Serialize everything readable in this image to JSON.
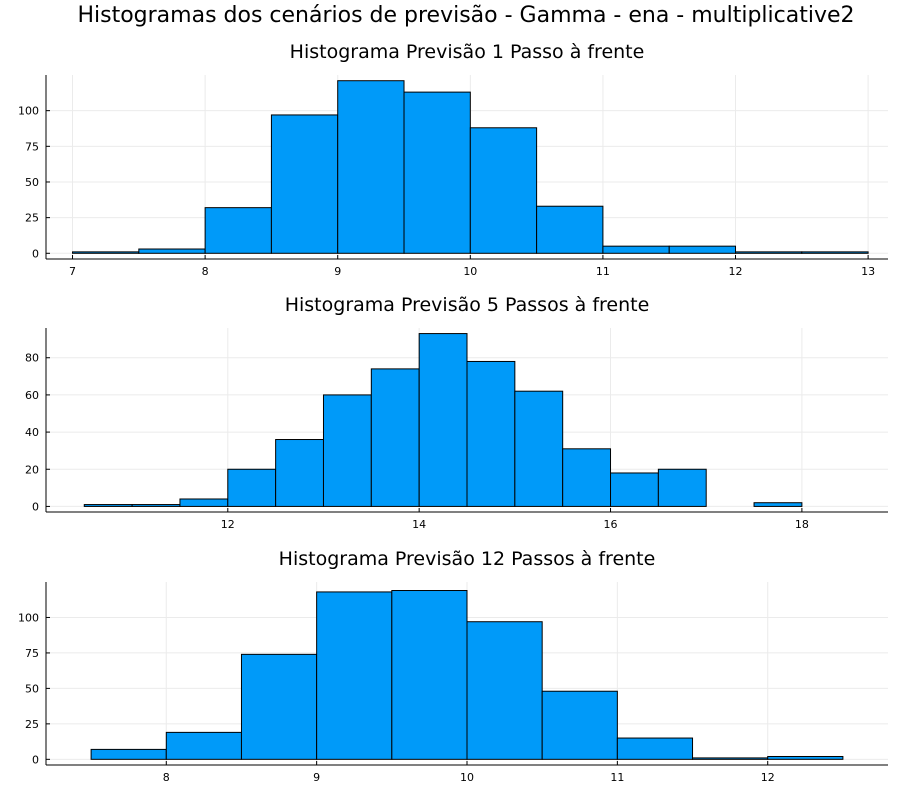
{
  "figure": {
    "title": "Histogramas dos cenários de previsão - Gamma - ena - multiplicative2"
  },
  "style": {
    "bar_fill": "#009AF9",
    "bar_stroke": "#000000",
    "grid_color": "#EBEBEB",
    "axis_color": "#000000",
    "background": "#FFFFFF"
  },
  "chart_data": [
    {
      "type": "bar",
      "title": "Histograma Previsão 1 Passo à frente",
      "xlabel": "",
      "ylabel": "",
      "grid": true,
      "legend": "none",
      "xlim": [
        6.8,
        13.15
      ],
      "ylim": [
        -4,
        125
      ],
      "xticks": [
        7,
        8,
        9,
        10,
        11,
        12,
        13
      ],
      "yticks": [
        0,
        25,
        50,
        75,
        100
      ],
      "bin_edges": [
        7,
        7.5,
        8,
        8.5,
        9,
        9.5,
        10,
        10.5,
        11,
        11.5,
        12,
        12.5,
        13
      ],
      "values": [
        1,
        3,
        32,
        97,
        121,
        113,
        88,
        33,
        5,
        5,
        1,
        1
      ]
    },
    {
      "type": "bar",
      "title": "Histograma Previsão 5 Passos à frente",
      "xlabel": "",
      "ylabel": "",
      "grid": true,
      "legend": "none",
      "xlim": [
        10.1,
        18.9
      ],
      "ylim": [
        -3,
        96
      ],
      "xticks": [
        12,
        14,
        16,
        18
      ],
      "yticks": [
        0,
        20,
        40,
        60,
        80
      ],
      "bin_edges": [
        10.5,
        11,
        11.5,
        12,
        12.5,
        13,
        13.5,
        14,
        14.5,
        15,
        15.5,
        16,
        16.5,
        17,
        17.5,
        18
      ],
      "values": [
        1,
        1,
        4,
        20,
        36,
        60,
        74,
        93,
        78,
        62,
        31,
        18,
        20,
        0,
        2
      ]
    },
    {
      "type": "bar",
      "title": "Histograma Previsão 12 Passos à frente",
      "xlabel": "",
      "ylabel": "",
      "grid": true,
      "legend": "none",
      "xlim": [
        7.2,
        12.8
      ],
      "ylim": [
        -4,
        125
      ],
      "xticks": [
        8,
        9,
        10,
        11,
        12
      ],
      "yticks": [
        0,
        25,
        50,
        75,
        100
      ],
      "bin_edges": [
        7.5,
        8,
        8.5,
        9,
        9.5,
        10,
        10.5,
        11,
        11.5,
        12,
        12.5
      ],
      "values": [
        7,
        19,
        74,
        118,
        119,
        97,
        48,
        15,
        1,
        2
      ]
    }
  ]
}
